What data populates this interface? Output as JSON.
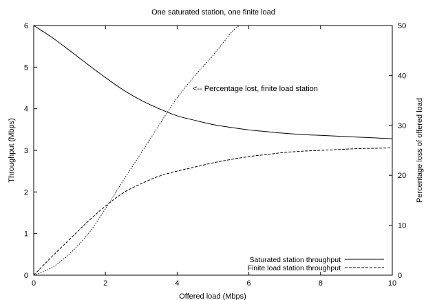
{
  "chart_data": {
    "type": "line",
    "title": "One saturated station, one finite load",
    "xlabel": "Offered load (Mbps)",
    "ylabel": "Throughput (Mbps)",
    "y2label": "Percentage loss of offered load",
    "xlim": [
      0,
      10
    ],
    "ylim": [
      0,
      6
    ],
    "y2lim": [
      0,
      50
    ],
    "xticks": [
      "0",
      "2",
      "4",
      "6",
      "8",
      "10"
    ],
    "yticks": [
      "0",
      "1",
      "2",
      "3",
      "4",
      "5",
      "6"
    ],
    "y2ticks": [
      "0",
      "10",
      "20",
      "30",
      "40",
      "50"
    ],
    "grid": false,
    "legend_position": "bottom-right",
    "annotation": "<-- Percentage lost, finite load station",
    "series": [
      {
        "name": "Saturated station throughput",
        "axis": "left",
        "style": "solid",
        "x": [
          0,
          0.5,
          1,
          1.5,
          2,
          2.5,
          3,
          3.5,
          4,
          4.5,
          5,
          5.5,
          6,
          6.5,
          7,
          7.5,
          8,
          8.5,
          9,
          9.5,
          10
        ],
        "y": [
          6.0,
          5.72,
          5.4,
          5.07,
          4.75,
          4.45,
          4.2,
          4.0,
          3.83,
          3.72,
          3.62,
          3.55,
          3.49,
          3.45,
          3.41,
          3.38,
          3.36,
          3.34,
          3.32,
          3.3,
          3.28
        ]
      },
      {
        "name": "Finite load station throughput",
        "axis": "left",
        "style": "dashed",
        "x": [
          0,
          0.5,
          1,
          1.5,
          2,
          2.5,
          3,
          3.5,
          4,
          4.5,
          5,
          5.5,
          6,
          6.5,
          7,
          7.5,
          8,
          8.5,
          9,
          9.5,
          10
        ],
        "y": [
          0,
          0.44,
          0.86,
          1.28,
          1.66,
          1.98,
          2.2,
          2.38,
          2.5,
          2.6,
          2.7,
          2.78,
          2.85,
          2.9,
          2.95,
          2.98,
          3.0,
          3.02,
          3.04,
          3.05,
          3.06
        ]
      },
      {
        "name": "Percentage lost, finite load station",
        "axis": "right",
        "style": "dotted",
        "x": [
          0,
          0.5,
          1,
          1.5,
          2,
          2.5,
          3,
          3.5,
          4,
          4.5,
          5,
          5.5,
          5.73
        ],
        "y": [
          0,
          1.5,
          4.3,
          8.1,
          13.3,
          19.0,
          24.5,
          30.1,
          35.5,
          40.0,
          44.0,
          48.5,
          50.0
        ]
      }
    ]
  }
}
